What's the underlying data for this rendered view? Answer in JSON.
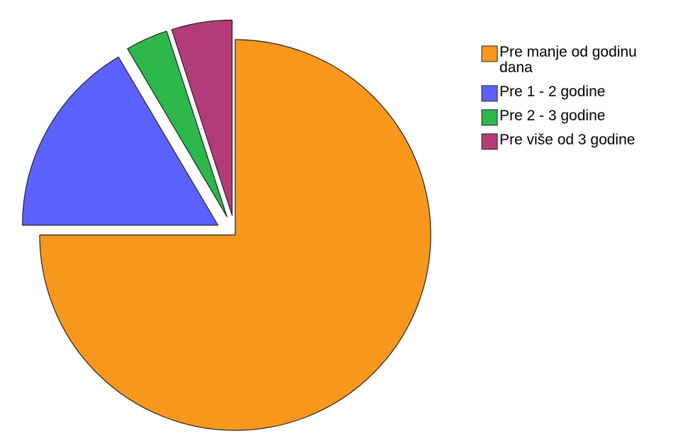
{
  "chart_data": {
    "type": "pie",
    "title": "",
    "legend_position": "right",
    "series": [
      {
        "name": "Pre manje od godinu dana",
        "value": 75.0,
        "color": "#F7981D"
      },
      {
        "name": "Pre 1 - 2 godine",
        "value": 16.5,
        "color": "#5C62FF"
      },
      {
        "name": "Pre 2 - 3 godine",
        "value": 3.5,
        "color": "#2DB84C"
      },
      {
        "name": "Pre više od 3 godine",
        "value": 5.0,
        "color": "#B33C78"
      }
    ],
    "exploded": [
      false,
      true,
      true,
      true
    ]
  }
}
